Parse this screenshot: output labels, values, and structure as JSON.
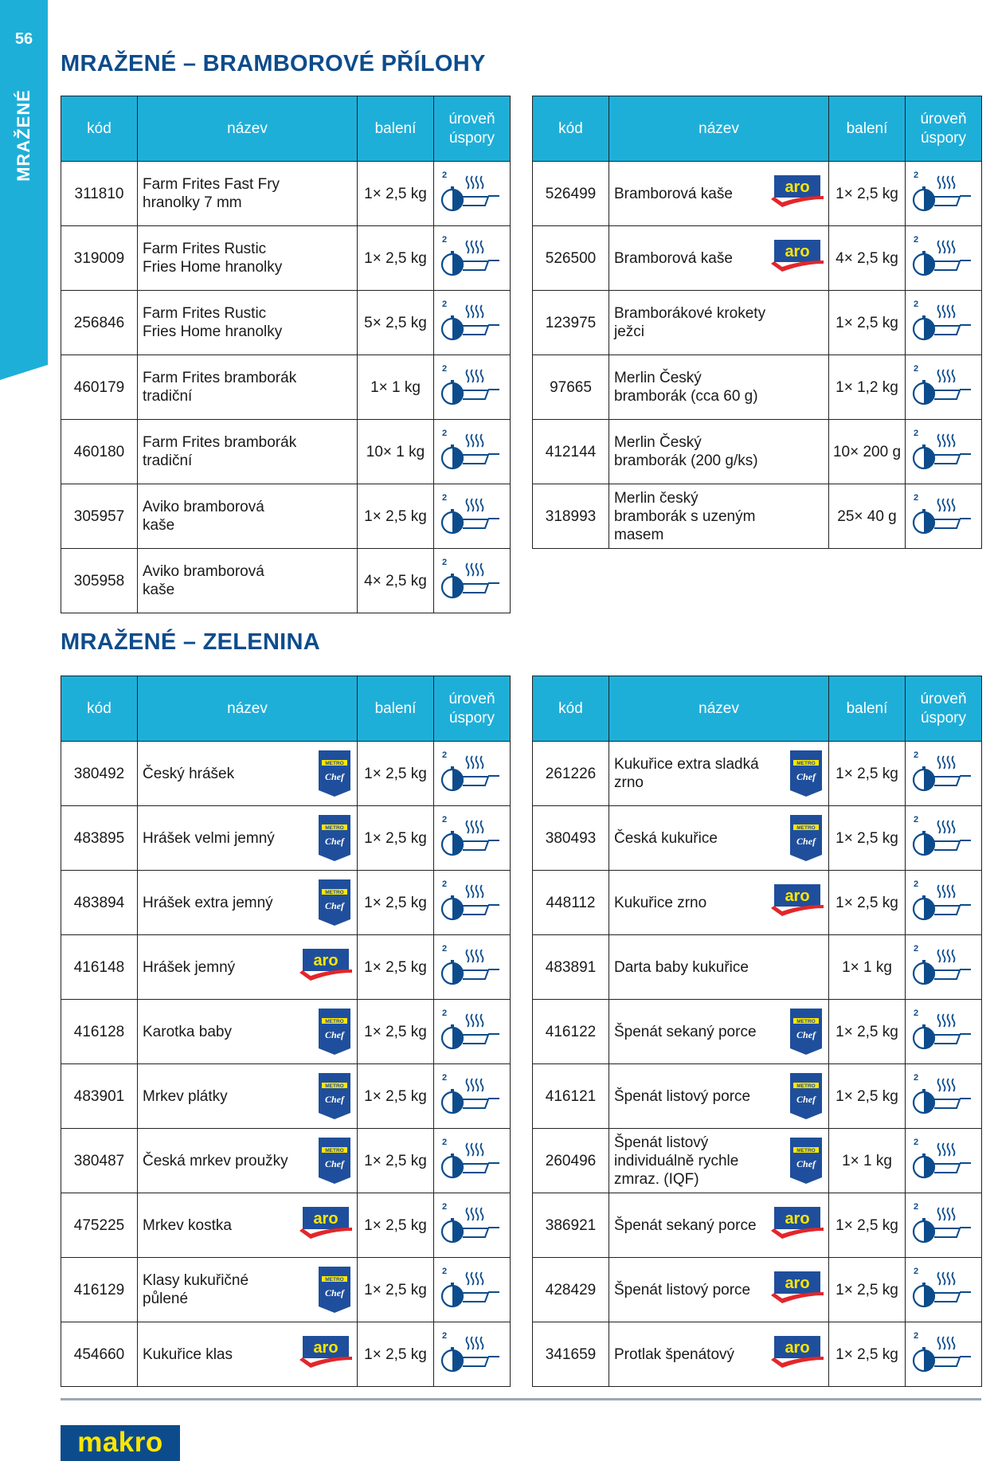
{
  "page_number": "56",
  "side_label": "MRAŽENÉ",
  "colors": {
    "accent": "#1eafd9",
    "title": "#0d4c8c",
    "aro_red": "#e3262a",
    "logo_yellow": "#ffe600"
  },
  "headers": {
    "code": "kód",
    "name": "název",
    "pack": "balení",
    "savings": "úroveň úspory"
  },
  "brand_logos": {
    "aro": "aro",
    "metro_chef_top": "METRO",
    "metro_chef_bottom": "Chef"
  },
  "sections": [
    {
      "title": "MRAŽENÉ – BRAMBOROVÉ PŘÍLOHY",
      "tables": [
        [
          {
            "code": "311810",
            "name": "Farm Frites Fast Fry hranolky 7 mm",
            "brand": "",
            "pack": "1× 2,5 kg",
            "savings": "2"
          },
          {
            "code": "319009",
            "name": "Farm Frites Rustic Fries Home hranolky",
            "brand": "",
            "pack": "1× 2,5 kg",
            "savings": "2"
          },
          {
            "code": "256846",
            "name": "Farm Frites Rustic Fries Home hranolky",
            "brand": "",
            "pack": "5× 2,5 kg",
            "savings": "2"
          },
          {
            "code": "460179",
            "name": "Farm Frites bramborák tradiční",
            "brand": "",
            "pack": "1× 1 kg",
            "savings": "2"
          },
          {
            "code": "460180",
            "name": "Farm Frites bramborák tradiční",
            "brand": "",
            "pack": "10× 1 kg",
            "savings": "2"
          },
          {
            "code": "305957",
            "name": "Aviko bramborová kaše",
            "brand": "",
            "pack": "1× 2,5 kg",
            "savings": "2"
          },
          {
            "code": "305958",
            "name": "Aviko bramborová kaše",
            "brand": "",
            "pack": "4× 2,5 kg",
            "savings": "2"
          }
        ],
        [
          {
            "code": "526499",
            "name": "Bramborová kaše",
            "brand": "aro",
            "pack": "1× 2,5 kg",
            "savings": "2"
          },
          {
            "code": "526500",
            "name": "Bramborová kaše",
            "brand": "aro",
            "pack": "4× 2,5 kg",
            "savings": "2"
          },
          {
            "code": "123975",
            "name": "Bramborákové krokety ježci",
            "brand": "",
            "pack": "1× 2,5 kg",
            "savings": "2"
          },
          {
            "code": "97665",
            "name": "Merlin Český bramborák (cca 60 g)",
            "brand": "",
            "pack": "1× 1,2 kg",
            "savings": "2"
          },
          {
            "code": "412144",
            "name": "Merlin Český bramborák (200 g/ks)",
            "brand": "",
            "pack": "10× 200 g",
            "savings": "2"
          },
          {
            "code": "318993",
            "name": "Merlin český bramborák s uzeným masem",
            "brand": "",
            "pack": "25× 40 g",
            "savings": "2"
          }
        ]
      ]
    },
    {
      "title": "MRAŽENÉ – ZELENINA",
      "tables": [
        [
          {
            "code": "380492",
            "name": "Český hrášek",
            "brand": "metro_chef",
            "pack": "1× 2,5 kg",
            "savings": "2"
          },
          {
            "code": "483895",
            "name": "Hrášek velmi jemný",
            "brand": "metro_chef",
            "pack": "1× 2,5 kg",
            "savings": "2"
          },
          {
            "code": "483894",
            "name": "Hrášek extra jemný",
            "brand": "metro_chef",
            "pack": "1× 2,5 kg",
            "savings": "2"
          },
          {
            "code": "416148",
            "name": "Hrášek jemný",
            "brand": "aro",
            "pack": "1× 2,5 kg",
            "savings": "2"
          },
          {
            "code": "416128",
            "name": "Karotka baby",
            "brand": "metro_chef",
            "pack": "1× 2,5 kg",
            "savings": "2"
          },
          {
            "code": "483901",
            "name": "Mrkev plátky",
            "brand": "metro_chef",
            "pack": "1× 2,5 kg",
            "savings": "2"
          },
          {
            "code": "380487",
            "name": "Česká mrkev proužky",
            "brand": "metro_chef",
            "pack": "1× 2,5 kg",
            "savings": "2"
          },
          {
            "code": "475225",
            "name": "Mrkev kostka",
            "brand": "aro",
            "pack": "1× 2,5 kg",
            "savings": "2"
          },
          {
            "code": "416129",
            "name": "Klasy kukuřičné půlené",
            "brand": "metro_chef",
            "pack": "1× 2,5 kg",
            "savings": "2"
          },
          {
            "code": "454660",
            "name": "Kukuřice klas",
            "brand": "aro",
            "pack": "1× 2,5 kg",
            "savings": "2"
          }
        ],
        [
          {
            "code": "261226",
            "name": "Kukuřice extra sladká zrno",
            "brand": "metro_chef",
            "pack": "1× 2,5 kg",
            "savings": "2"
          },
          {
            "code": "380493",
            "name": "Česká kukuřice",
            "brand": "metro_chef",
            "pack": "1× 2,5 kg",
            "savings": "2"
          },
          {
            "code": "448112",
            "name": "Kukuřice zrno",
            "brand": "aro",
            "pack": "1× 2,5 kg",
            "savings": "2"
          },
          {
            "code": "483891",
            "name": "Darta baby kukuřice",
            "brand": "",
            "pack": "1× 1 kg",
            "savings": "2"
          },
          {
            "code": "416122",
            "name": "Špenát sekaný porce",
            "brand": "metro_chef",
            "pack": "1× 2,5 kg",
            "savings": "2"
          },
          {
            "code": "416121",
            "name": "Špenát listový porce",
            "brand": "metro_chef",
            "pack": "1× 2,5 kg",
            "savings": "2"
          },
          {
            "code": "260496",
            "name": "Špenát listový individuálně rychle zmraz. (IQF)",
            "brand": "metro_chef",
            "pack": "1× 1 kg",
            "savings": "2"
          },
          {
            "code": "386921",
            "name": "Špenát sekaný porce",
            "brand": "aro",
            "pack": "1× 2,5 kg",
            "savings": "2"
          },
          {
            "code": "428429",
            "name": "Špenát listový porce",
            "brand": "aro",
            "pack": "1× 2,5 kg",
            "savings": "2"
          },
          {
            "code": "341659",
            "name": "Protlak špenátový",
            "brand": "aro",
            "pack": "1× 2,5 kg",
            "savings": "2"
          }
        ]
      ]
    }
  ],
  "footer": {
    "logo": "makro"
  }
}
